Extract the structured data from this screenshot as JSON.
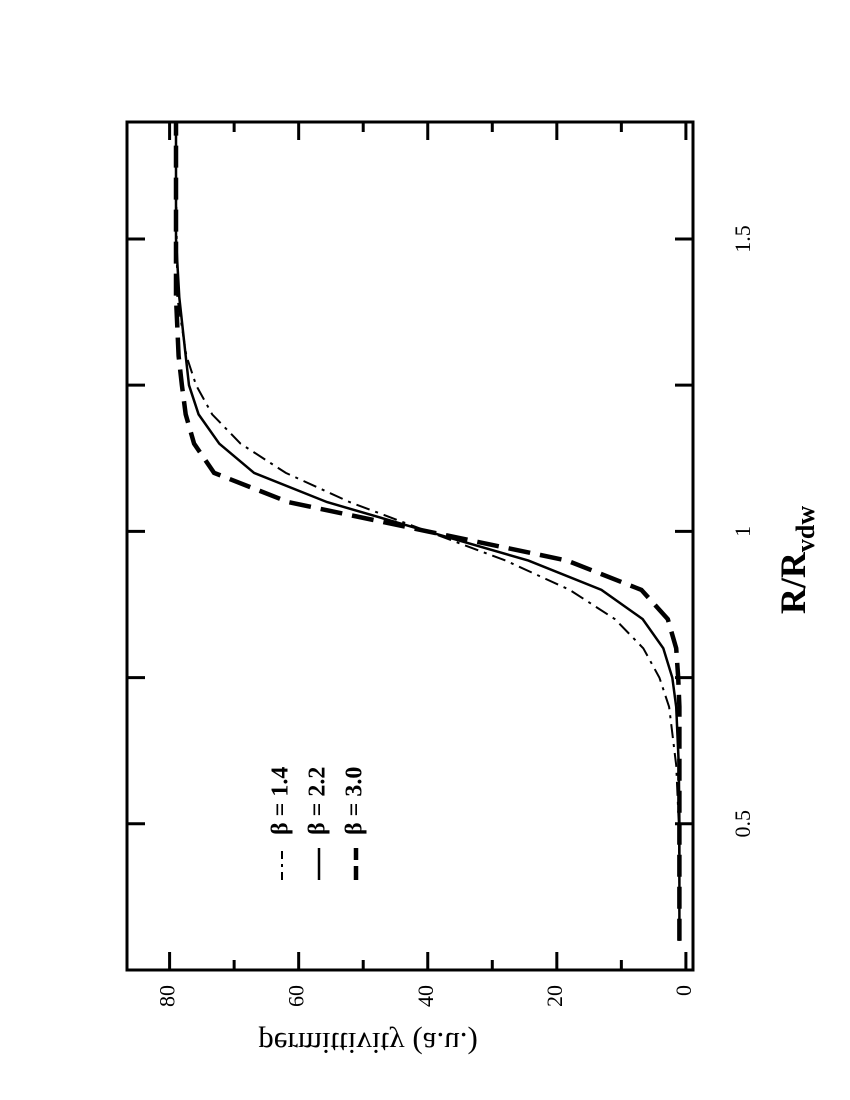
{
  "chart_data": {
    "type": "line",
    "x_label": "R/R",
    "x_label_subscript": "vdw",
    "y_label": "permittivity (a.u.)",
    "x": [
      0.3,
      0.4,
      0.5,
      0.6,
      0.7,
      0.75,
      0.8,
      0.85,
      0.9,
      0.95,
      1.0,
      1.05,
      1.1,
      1.15,
      1.2,
      1.25,
      1.3,
      1.4,
      1.5,
      1.6,
      1.7
    ],
    "series": [
      {
        "name": "β = 1.4",
        "color": "#000000",
        "style": "dashdot",
        "width": 2,
        "values": [
          1.0,
          1.0,
          1.1,
          1.5,
          2.6,
          4.1,
          6.6,
          11.0,
          18.0,
          27.9,
          40.0,
          52.1,
          62.0,
          69.0,
          73.4,
          75.9,
          77.4,
          78.8,
          78.9,
          79.0,
          79.0
        ]
      },
      {
        "name": "β = 2.2",
        "color": "#000000",
        "style": "solid",
        "width": 2.5,
        "values": [
          1.0,
          1.0,
          1.0,
          1.1,
          1.5,
          2.1,
          3.5,
          6.7,
          13.1,
          24.4,
          40.0,
          55.6,
          66.9,
          72.3,
          75.5,
          77.0,
          77.5,
          78.5,
          79.0,
          79.0,
          79.0
        ]
      },
      {
        "name": "β = 3.0",
        "color": "#000000",
        "style": "dashed",
        "width": 4.5,
        "values": [
          1.0,
          1.0,
          1.0,
          1.0,
          1.0,
          1.2,
          1.5,
          2.8,
          6.9,
          18.4,
          40.0,
          61.6,
          73.1,
          76.2,
          77.5,
          78.1,
          78.6,
          79.0,
          79.0,
          79.0,
          79.0
        ]
      }
    ],
    "xlim": [
      0.25,
      1.7
    ],
    "xticks": [
      0.5,
      1,
      1.5
    ],
    "xminor": [
      0.75,
      1.25
    ],
    "ylim": [
      -1.1,
      86.6
    ],
    "yticks": [
      0,
      20,
      40,
      60,
      80
    ],
    "yminor": [
      10,
      30,
      50,
      70
    ],
    "rotation": -90
  }
}
